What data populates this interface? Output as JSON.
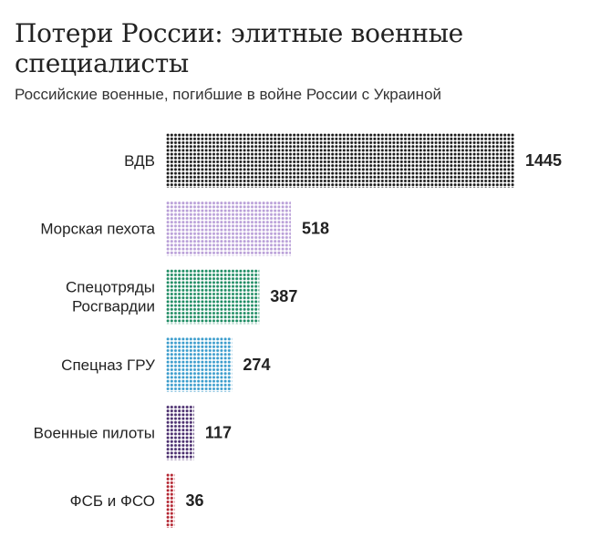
{
  "title": "Потери России: элитные военные специалисты",
  "subtitle": "Российские военные, погибшие в войне России с Украиной",
  "chart_data": {
    "type": "bar",
    "orientation": "horizontal",
    "style": "dot-matrix",
    "title": "Потери России: элитные военные специалисты",
    "subtitle": "Российские военные, погибшие в войне России с Украиной",
    "categories": [
      [
        "ВДВ"
      ],
      [
        "Морская пехота"
      ],
      [
        "Спецотряды",
        "Росгвардии"
      ],
      [
        "Спецназ ГРУ"
      ],
      [
        "Военные пилоты"
      ],
      [
        "ФСБ и ФСО"
      ]
    ],
    "values": [
      1445,
      518,
      387,
      274,
      117,
      36
    ],
    "colors": [
      "#1a1a1a",
      "#b99fd8",
      "#1e8c63",
      "#3a9ccc",
      "#4a2d6e",
      "#b32430"
    ],
    "grid": false,
    "legend": "none"
  }
}
